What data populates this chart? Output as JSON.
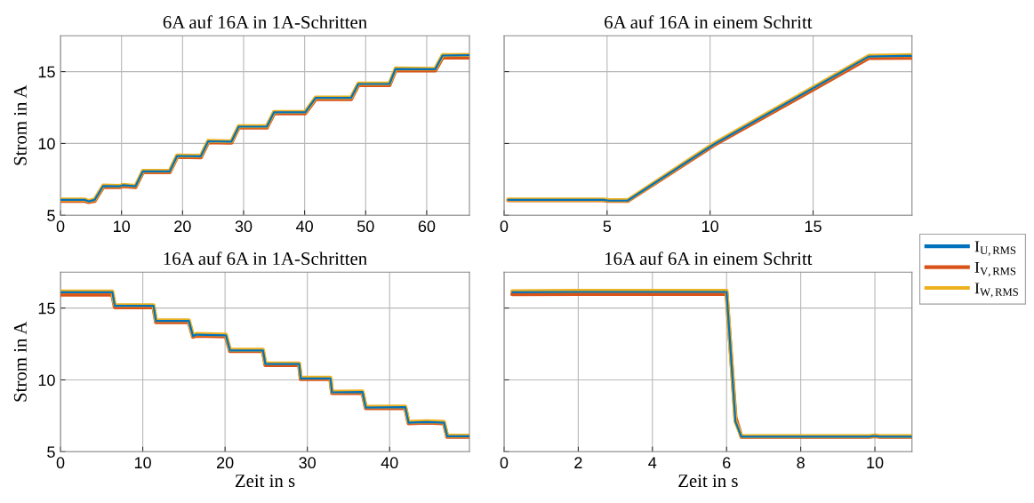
{
  "chart_data": [
    {
      "type": "line",
      "title": "6A auf 16A in 1A-Schritten",
      "ylabel": "Strom in A",
      "xlim": [
        0,
        67
      ],
      "xticks": [
        0,
        10,
        20,
        30,
        40,
        50,
        60
      ],
      "ylim": [
        5,
        17.5
      ],
      "yticks": [
        5,
        10,
        15
      ],
      "grid": true,
      "legend": "right",
      "series": [
        {
          "name": "I$_{U,RMS}$",
          "color": "#0072bd",
          "x": [
            0,
            4,
            4.6,
            5.6,
            7,
            9.8,
            10.2,
            12.3,
            13.5,
            17.9,
            19.1,
            23,
            24.2,
            28,
            29.2,
            33.8,
            35,
            40.1,
            41.8,
            47.6,
            48.8,
            53.9,
            54.9,
            61.4,
            62.6,
            67
          ],
          "values": [
            6.07,
            6.07,
            5.97,
            6.07,
            7.04,
            7.02,
            7.09,
            7.02,
            8.06,
            8.06,
            9.13,
            9.11,
            10.15,
            10.12,
            11.17,
            11.17,
            12.17,
            12.17,
            13.17,
            13.17,
            14.14,
            14.14,
            15.19,
            15.17,
            16.12,
            16.14
          ]
        },
        {
          "name": "I$_{V,RMS}$",
          "color": "#d95319",
          "x": [
            0,
            4,
            4.6,
            5.6,
            7,
            9.8,
            10.2,
            12.3,
            13.5,
            17.9,
            19.1,
            23,
            24.2,
            28,
            29.2,
            33.8,
            35,
            40.1,
            41.8,
            47.6,
            48.8,
            53.9,
            54.9,
            61.4,
            62.6,
            67
          ],
          "values": [
            6.0,
            6.0,
            5.92,
            6.0,
            6.98,
            6.96,
            7.03,
            6.96,
            8.0,
            8.0,
            9.06,
            9.04,
            10.08,
            10.05,
            11.1,
            11.1,
            12.1,
            12.1,
            13.08,
            13.08,
            14.06,
            14.06,
            15.1,
            15.08,
            15.98,
            15.98
          ]
        },
        {
          "name": "I$_{W,RMS}$",
          "color": "#edb120",
          "x": [
            0,
            4,
            4.6,
            5.6,
            7,
            9.8,
            10.2,
            12.3,
            13.5,
            17.9,
            19.1,
            23,
            24.2,
            28,
            29.2,
            33.8,
            35,
            40.1,
            41.8,
            47.6,
            48.8,
            53.9,
            54.9,
            61.4,
            62.6,
            67
          ],
          "values": [
            6.1,
            6.1,
            6.0,
            6.1,
            7.07,
            7.05,
            7.12,
            7.05,
            8.09,
            8.09,
            9.16,
            9.14,
            10.18,
            10.15,
            11.2,
            11.2,
            12.2,
            12.2,
            13.2,
            13.2,
            14.17,
            14.17,
            15.22,
            15.2,
            16.15,
            16.17
          ]
        }
      ]
    },
    {
      "type": "line",
      "title": "6A auf 16A in einem Schritt",
      "xlim": [
        0,
        19.8
      ],
      "xticks": [
        0,
        5,
        10,
        15
      ],
      "ylim": [
        5,
        17.5
      ],
      "yticks": [
        5,
        10,
        15
      ],
      "grid": true,
      "tick_labels": "x",
      "series": [
        {
          "color": "#0072bd",
          "x": [
            0.2,
            4.8,
            5.1,
            6.0,
            10.2,
            15.0,
            17.7,
            19.8
          ],
          "values": [
            6.08,
            6.08,
            6.02,
            6.02,
            9.95,
            13.85,
            16.05,
            16.1
          ]
        },
        {
          "color": "#d95319",
          "x": [
            0.2,
            4.8,
            5.1,
            6.0,
            10.2,
            15.0,
            17.7,
            19.8
          ],
          "values": [
            6.05,
            6.05,
            6.0,
            6.0,
            9.9,
            13.75,
            15.95,
            15.97
          ]
        },
        {
          "color": "#edb120",
          "x": [
            0.2,
            4.8,
            5.1,
            6.0,
            10.2,
            15.0,
            17.7,
            19.8
          ],
          "values": [
            6.1,
            6.1,
            6.05,
            6.05,
            10.0,
            13.9,
            16.1,
            16.15
          ]
        }
      ]
    },
    {
      "type": "line",
      "title": "16A auf 6A in 1A-Schritten",
      "xlabel": "Zeit in s",
      "ylabel": "Strom in A",
      "xlim": [
        0,
        49.7
      ],
      "xticks": [
        0,
        10,
        20,
        30,
        40
      ],
      "ylim": [
        5,
        17.5
      ],
      "yticks": [
        5,
        10,
        15
      ],
      "grid": true,
      "series": [
        {
          "color": "#0072bd",
          "x": [
            0,
            6.3,
            6.6,
            11.3,
            11.6,
            15.6,
            16.1,
            16.5,
            20.1,
            20.6,
            24.6,
            24.9,
            29.0,
            29.2,
            32.8,
            33.0,
            36.7,
            37.1,
            41.9,
            42.3,
            44.5,
            46.6,
            47.0,
            49.7
          ],
          "values": [
            16.1,
            16.1,
            15.15,
            15.15,
            14.1,
            14.1,
            13.05,
            13.15,
            13.1,
            12.05,
            12.05,
            11.1,
            11.1,
            10.1,
            10.1,
            9.13,
            9.15,
            8.07,
            8.1,
            7.02,
            7.07,
            7.02,
            6.07,
            6.07
          ]
        },
        {
          "color": "#d95319",
          "x": [
            0,
            6.3,
            6.6,
            11.3,
            11.6,
            15.6,
            16.1,
            16.5,
            20.1,
            20.6,
            24.6,
            24.9,
            29.0,
            29.2,
            32.8,
            33.0,
            36.7,
            37.1,
            41.9,
            42.3,
            44.5,
            46.6,
            47.0,
            49.7
          ],
          "values": [
            15.93,
            15.93,
            15.05,
            15.05,
            14.02,
            14.02,
            13.0,
            13.08,
            13.03,
            12.0,
            12.0,
            11.03,
            11.03,
            10.05,
            10.05,
            9.08,
            9.1,
            8.03,
            8.05,
            6.98,
            7.03,
            6.98,
            6.03,
            6.03
          ]
        },
        {
          "color": "#edb120",
          "x": [
            0,
            6.3,
            6.6,
            11.3,
            11.6,
            15.6,
            16.1,
            16.5,
            20.1,
            20.6,
            24.6,
            24.9,
            29.0,
            29.2,
            32.8,
            33.0,
            36.7,
            37.1,
            41.9,
            42.3,
            44.5,
            46.6,
            47.0,
            49.7
          ],
          "values": [
            16.15,
            16.15,
            15.2,
            15.2,
            14.15,
            14.15,
            13.1,
            13.2,
            13.15,
            12.1,
            12.1,
            11.15,
            11.15,
            10.15,
            10.15,
            9.18,
            9.2,
            8.12,
            8.15,
            7.07,
            7.12,
            7.07,
            6.12,
            6.12
          ]
        }
      ]
    },
    {
      "type": "line",
      "title": "16A auf 6A in einem Schritt",
      "xlabel": "Zeit in s",
      "xlim": [
        0,
        11
      ],
      "xticks": [
        0,
        2,
        4,
        6,
        8,
        10
      ],
      "ylim": [
        5,
        17.5
      ],
      "yticks": [
        5,
        10,
        15
      ],
      "grid": true,
      "tick_labels": "x",
      "series": [
        {
          "color": "#0072bd",
          "x": [
            0.22,
            2,
            4,
            6.0,
            6.24,
            6.4,
            9.85,
            10.0,
            10.13,
            11.0
          ],
          "values": [
            16.1,
            16.12,
            16.12,
            16.12,
            7.1,
            6.05,
            6.05,
            6.1,
            6.05,
            6.05
          ]
        },
        {
          "color": "#d95319",
          "x": [
            0.22,
            2,
            4,
            6.0,
            6.24,
            6.4,
            9.85,
            10.0,
            10.13,
            11.0
          ],
          "values": [
            15.97,
            15.98,
            15.98,
            15.98,
            7.4,
            6.03,
            6.03,
            6.08,
            6.03,
            6.03
          ]
        },
        {
          "color": "#edb120",
          "x": [
            0.22,
            2,
            4,
            6.0,
            6.24,
            6.4,
            9.85,
            10.0,
            10.13,
            11.0
          ],
          "values": [
            16.17,
            16.2,
            16.2,
            16.2,
            7.1,
            6.08,
            6.08,
            6.13,
            6.08,
            6.08
          ]
        }
      ]
    }
  ]
}
